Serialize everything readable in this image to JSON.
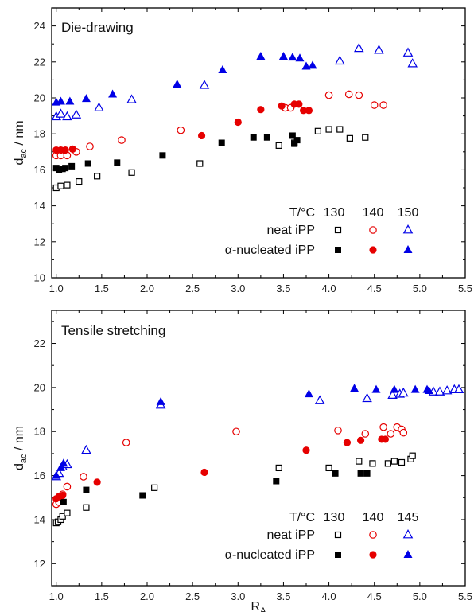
{
  "colors": {
    "neat_130": "#000000",
    "neat_140": "#e60000",
    "neat_150": "#0000e6",
    "frame": "#000000"
  },
  "chart_data": [
    {
      "type": "scatter",
      "title": "Die-drawing",
      "xlabel": "",
      "ylabel_main": "d",
      "ylabel_sub": "ac",
      "ylabel_unit": " / nm",
      "xlim": [
        0.95,
        5.5
      ],
      "ylim": [
        10,
        25
      ],
      "xticks": [
        "1.0",
        "1.5",
        "2.0",
        "2.5",
        "3.0",
        "3.5",
        "4.0",
        "4.5",
        "5.0",
        "5.5"
      ],
      "xtick_values": [
        1.0,
        1.5,
        2.0,
        2.5,
        3.0,
        3.5,
        4.0,
        4.5,
        5.0,
        5.5
      ],
      "yticks": [
        "10",
        "12",
        "14",
        "16",
        "18",
        "20",
        "22",
        "24"
      ],
      "ytick_values": [
        10,
        12,
        14,
        16,
        18,
        20,
        22,
        24
      ],
      "legend": {
        "header_label": "T/",
        "header_unit": "°C",
        "temperatures": [
          "130",
          "140",
          "150"
        ],
        "rows": [
          "neat iPP",
          "α-nucleated iPP"
        ]
      },
      "series": [
        {
          "name": "neat iPP 130",
          "color": "#000000",
          "marker": "square",
          "filled": false,
          "points": [
            [
              1.0,
              15.0
            ],
            [
              1.05,
              15.1
            ],
            [
              1.12,
              15.15
            ],
            [
              1.25,
              15.35
            ],
            [
              1.45,
              15.65
            ],
            [
              1.83,
              15.85
            ],
            [
              2.58,
              16.35
            ],
            [
              3.45,
              17.35
            ],
            [
              3.62,
              17.5
            ],
            [
              3.88,
              18.15
            ],
            [
              4.0,
              18.25
            ],
            [
              4.12,
              18.25
            ],
            [
              4.23,
              17.75
            ],
            [
              4.4,
              17.8
            ]
          ]
        },
        {
          "name": "neat iPP 140",
          "color": "#e60000",
          "marker": "circle",
          "filled": false,
          "points": [
            [
              1.0,
              16.8
            ],
            [
              1.05,
              16.8
            ],
            [
              1.12,
              16.8
            ],
            [
              1.22,
              17.0
            ],
            [
              1.37,
              17.3
            ],
            [
              1.72,
              17.65
            ],
            [
              2.37,
              18.2
            ],
            [
              3.52,
              19.45
            ],
            [
              3.58,
              19.45
            ],
            [
              4.0,
              20.15
            ],
            [
              4.22,
              20.2
            ],
            [
              4.33,
              20.15
            ],
            [
              4.5,
              19.6
            ],
            [
              4.6,
              19.6
            ]
          ]
        },
        {
          "name": "neat iPP 150",
          "color": "#0000e6",
          "marker": "triangle",
          "filled": false,
          "points": [
            [
              1.0,
              18.95
            ],
            [
              1.05,
              19.1
            ],
            [
              1.12,
              18.95
            ],
            [
              1.22,
              19.05
            ],
            [
              1.47,
              19.45
            ],
            [
              1.83,
              19.9
            ],
            [
              2.63,
              20.7
            ],
            [
              4.12,
              22.05
            ],
            [
              4.33,
              22.75
            ],
            [
              4.55,
              22.65
            ],
            [
              4.87,
              22.5
            ],
            [
              4.92,
              21.9
            ]
          ]
        },
        {
          "name": "α-nucleated iPP 130",
          "color": "#000000",
          "marker": "square",
          "filled": true,
          "points": [
            [
              1.0,
              16.1
            ],
            [
              1.03,
              16.0
            ],
            [
              1.07,
              16.05
            ],
            [
              1.1,
              16.1
            ],
            [
              1.17,
              16.2
            ],
            [
              1.35,
              16.35
            ],
            [
              1.67,
              16.4
            ],
            [
              2.17,
              16.8
            ],
            [
              2.82,
              17.5
            ],
            [
              3.17,
              17.8
            ],
            [
              3.32,
              17.8
            ],
            [
              3.6,
              17.9
            ],
            [
              3.62,
              17.45
            ],
            [
              3.65,
              17.65
            ]
          ]
        },
        {
          "name": "α-nucleated iPP 140",
          "color": "#e60000",
          "marker": "circle",
          "filled": true,
          "points": [
            [
              1.0,
              17.1
            ],
            [
              1.05,
              17.1
            ],
            [
              1.1,
              17.1
            ],
            [
              1.18,
              17.15
            ],
            [
              2.6,
              17.9
            ],
            [
              3.0,
              18.65
            ],
            [
              3.25,
              19.35
            ],
            [
              3.48,
              19.55
            ],
            [
              3.62,
              19.65
            ],
            [
              3.67,
              19.65
            ],
            [
              3.72,
              19.3
            ],
            [
              3.78,
              19.3
            ]
          ]
        },
        {
          "name": "α-nucleated iPP 150",
          "color": "#0000e6",
          "marker": "triangle",
          "filled": true,
          "points": [
            [
              1.0,
              19.75
            ],
            [
              1.05,
              19.8
            ],
            [
              1.15,
              19.8
            ],
            [
              1.33,
              19.95
            ],
            [
              1.62,
              20.2
            ],
            [
              2.33,
              20.75
            ],
            [
              2.83,
              21.55
            ],
            [
              3.25,
              22.3
            ],
            [
              3.5,
              22.3
            ],
            [
              3.6,
              22.25
            ],
            [
              3.68,
              22.2
            ],
            [
              3.75,
              21.75
            ],
            [
              3.82,
              21.8
            ]
          ]
        }
      ]
    },
    {
      "type": "scatter",
      "title": "Tensile stretching",
      "xlabel_main": "R",
      "xlabel_sub": "A",
      "ylabel_main": "d",
      "ylabel_sub": "ac",
      "ylabel_unit": " / nm",
      "xlim": [
        0.95,
        5.5
      ],
      "ylim": [
        11,
        23.5
      ],
      "xticks": [
        "1.0",
        "1.5",
        "2.0",
        "2.5",
        "3.0",
        "3.5",
        "4.0",
        "4.5",
        "5.0",
        "5.5"
      ],
      "xtick_values": [
        1.0,
        1.5,
        2.0,
        2.5,
        3.0,
        3.5,
        4.0,
        4.5,
        5.0,
        5.5
      ],
      "yticks": [
        "12",
        "14",
        "16",
        "18",
        "20",
        "22"
      ],
      "ytick_values": [
        12,
        14,
        16,
        18,
        20,
        22
      ],
      "legend": {
        "header_label": "T/",
        "header_unit": "°C",
        "temperatures": [
          "130",
          "140",
          "145"
        ],
        "rows": [
          "neat iPP",
          "α-nucleated iPP"
        ]
      },
      "series": [
        {
          "name": "neat iPP 130",
          "color": "#000000",
          "marker": "square",
          "filled": false,
          "points": [
            [
              1.0,
              13.85
            ],
            [
              1.02,
              13.9
            ],
            [
              1.05,
              14.0
            ],
            [
              1.07,
              14.15
            ],
            [
              1.12,
              14.3
            ],
            [
              1.33,
              14.55
            ],
            [
              2.08,
              15.45
            ],
            [
              3.45,
              16.35
            ],
            [
              4.0,
              16.35
            ],
            [
              4.33,
              16.65
            ],
            [
              4.48,
              16.55
            ],
            [
              4.65,
              16.55
            ],
            [
              4.72,
              16.65
            ],
            [
              4.8,
              16.6
            ],
            [
              4.9,
              16.75
            ],
            [
              4.92,
              16.9
            ]
          ]
        },
        {
          "name": "neat iPP 140",
          "color": "#e60000",
          "marker": "circle",
          "filled": false,
          "points": [
            [
              1.0,
              14.7
            ],
            [
              1.03,
              14.8
            ],
            [
              1.07,
              15.15
            ],
            [
              1.12,
              15.5
            ],
            [
              1.3,
              15.95
            ],
            [
              1.77,
              17.5
            ],
            [
              2.98,
              18.0
            ],
            [
              4.1,
              18.05
            ],
            [
              4.4,
              17.9
            ],
            [
              4.6,
              18.2
            ],
            [
              4.68,
              17.9
            ],
            [
              4.75,
              18.2
            ],
            [
              4.8,
              18.1
            ],
            [
              4.82,
              17.95
            ]
          ]
        },
        {
          "name": "neat iPP 145",
          "color": "#0000e6",
          "marker": "triangle",
          "filled": false,
          "points": [
            [
              1.0,
              15.95
            ],
            [
              1.03,
              16.1
            ],
            [
              1.07,
              16.4
            ],
            [
              1.12,
              16.5
            ],
            [
              1.33,
              17.15
            ],
            [
              2.15,
              19.2
            ],
            [
              3.9,
              19.4
            ],
            [
              4.42,
              19.5
            ],
            [
              4.7,
              19.65
            ],
            [
              4.78,
              19.7
            ],
            [
              4.82,
              19.75
            ],
            [
              5.15,
              19.8
            ],
            [
              5.22,
              19.8
            ],
            [
              5.3,
              19.85
            ],
            [
              5.38,
              19.9
            ],
            [
              5.43,
              19.9
            ]
          ]
        },
        {
          "name": "α-nucleated iPP 130",
          "color": "#000000",
          "marker": "square",
          "filled": true,
          "points": [
            [
              1.08,
              14.8
            ],
            [
              1.33,
              15.35
            ],
            [
              1.95,
              15.1
            ],
            [
              3.42,
              15.75
            ],
            [
              4.07,
              16.1
            ],
            [
              4.35,
              16.1
            ],
            [
              4.42,
              16.1
            ]
          ]
        },
        {
          "name": "α-nucleated iPP 140",
          "color": "#e60000",
          "marker": "circle",
          "filled": true,
          "points": [
            [
              1.0,
              14.95
            ],
            [
              1.03,
              15.05
            ],
            [
              1.07,
              15.1
            ],
            [
              1.45,
              15.7
            ],
            [
              2.63,
              16.15
            ],
            [
              3.75,
              17.15
            ],
            [
              4.2,
              17.5
            ],
            [
              4.35,
              17.6
            ],
            [
              4.58,
              17.65
            ],
            [
              4.62,
              17.65
            ]
          ]
        },
        {
          "name": "α-nucleated iPP 145",
          "color": "#0000e6",
          "marker": "triangle",
          "filled": true,
          "points": [
            [
              1.0,
              16.0
            ],
            [
              1.05,
              16.35
            ],
            [
              1.08,
              16.55
            ],
            [
              2.15,
              19.35
            ],
            [
              3.78,
              19.7
            ],
            [
              4.28,
              19.95
            ],
            [
              4.52,
              19.9
            ],
            [
              4.72,
              19.9
            ],
            [
              4.95,
              19.9
            ],
            [
              5.08,
              19.9
            ],
            [
              5.1,
              19.85
            ]
          ]
        }
      ]
    }
  ]
}
